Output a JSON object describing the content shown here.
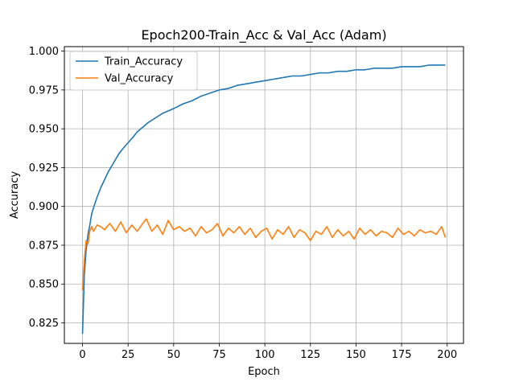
{
  "chart_data": {
    "type": "line",
    "title": "Epoch200-Train_Acc & Val_Acc (Adam)",
    "xlabel": "Epoch",
    "ylabel": "Accuracy",
    "xlim": [
      -9.95,
      208.95
    ],
    "ylim": [
      0.8118,
      1.0029
    ],
    "xticks": [
      0,
      25,
      50,
      75,
      100,
      125,
      150,
      175,
      200
    ],
    "yticks": [
      0.825,
      0.85,
      0.875,
      0.9,
      0.925,
      0.95,
      0.975,
      1.0
    ],
    "ytick_labels": [
      "0.825",
      "0.850",
      "0.875",
      "0.900",
      "0.925",
      "0.950",
      "0.975",
      "1.000"
    ],
    "grid": true,
    "legend_position": "upper-left",
    "series": [
      {
        "name": "Train_Accuracy",
        "color": "#1f77b4",
        "x": [
          0,
          1,
          2,
          3,
          4,
          5,
          6,
          8,
          10,
          12,
          14,
          16,
          18,
          20,
          22,
          25,
          28,
          30,
          33,
          36,
          40,
          44,
          48,
          50,
          55,
          60,
          65,
          70,
          75,
          80,
          85,
          90,
          95,
          100,
          105,
          110,
          115,
          120,
          125,
          130,
          135,
          140,
          145,
          150,
          155,
          160,
          165,
          170,
          175,
          180,
          185,
          190,
          195,
          199
        ],
        "values": [
          0.818,
          0.856,
          0.872,
          0.882,
          0.888,
          0.895,
          0.899,
          0.906,
          0.912,
          0.917,
          0.922,
          0.926,
          0.93,
          0.934,
          0.937,
          0.941,
          0.945,
          0.948,
          0.951,
          0.954,
          0.957,
          0.96,
          0.962,
          0.963,
          0.966,
          0.968,
          0.971,
          0.973,
          0.975,
          0.976,
          0.978,
          0.979,
          0.98,
          0.981,
          0.982,
          0.983,
          0.984,
          0.984,
          0.985,
          0.986,
          0.986,
          0.987,
          0.987,
          0.988,
          0.988,
          0.989,
          0.989,
          0.989,
          0.99,
          0.99,
          0.99,
          0.991,
          0.991,
          0.991
        ]
      },
      {
        "name": "Val_Accuracy",
        "color": "#ff7f0e",
        "x": [
          0,
          1,
          2,
          3,
          4,
          5,
          6,
          8,
          10,
          12,
          15,
          18,
          21,
          24,
          27,
          30,
          33,
          35,
          38,
          41,
          44,
          47,
          50,
          53,
          56,
          59,
          62,
          65,
          68,
          71,
          74,
          77,
          80,
          83,
          86,
          89,
          92,
          95,
          98,
          101,
          104,
          107,
          110,
          113,
          116,
          119,
          122,
          125,
          128,
          131,
          134,
          137,
          140,
          143,
          146,
          149,
          152,
          155,
          158,
          161,
          164,
          167,
          170,
          173,
          176,
          179,
          182,
          185,
          188,
          191,
          194,
          197,
          199
        ],
        "values": [
          0.846,
          0.866,
          0.878,
          0.876,
          0.884,
          0.887,
          0.884,
          0.888,
          0.887,
          0.885,
          0.889,
          0.884,
          0.89,
          0.883,
          0.888,
          0.884,
          0.889,
          0.892,
          0.884,
          0.888,
          0.882,
          0.891,
          0.885,
          0.887,
          0.884,
          0.886,
          0.881,
          0.887,
          0.883,
          0.885,
          0.889,
          0.881,
          0.886,
          0.883,
          0.887,
          0.882,
          0.886,
          0.88,
          0.884,
          0.886,
          0.879,
          0.885,
          0.882,
          0.887,
          0.88,
          0.885,
          0.883,
          0.878,
          0.884,
          0.882,
          0.887,
          0.88,
          0.885,
          0.881,
          0.884,
          0.879,
          0.886,
          0.882,
          0.885,
          0.881,
          0.884,
          0.883,
          0.88,
          0.886,
          0.882,
          0.884,
          0.881,
          0.885,
          0.883,
          0.884,
          0.882,
          0.887,
          0.88
        ]
      }
    ]
  }
}
